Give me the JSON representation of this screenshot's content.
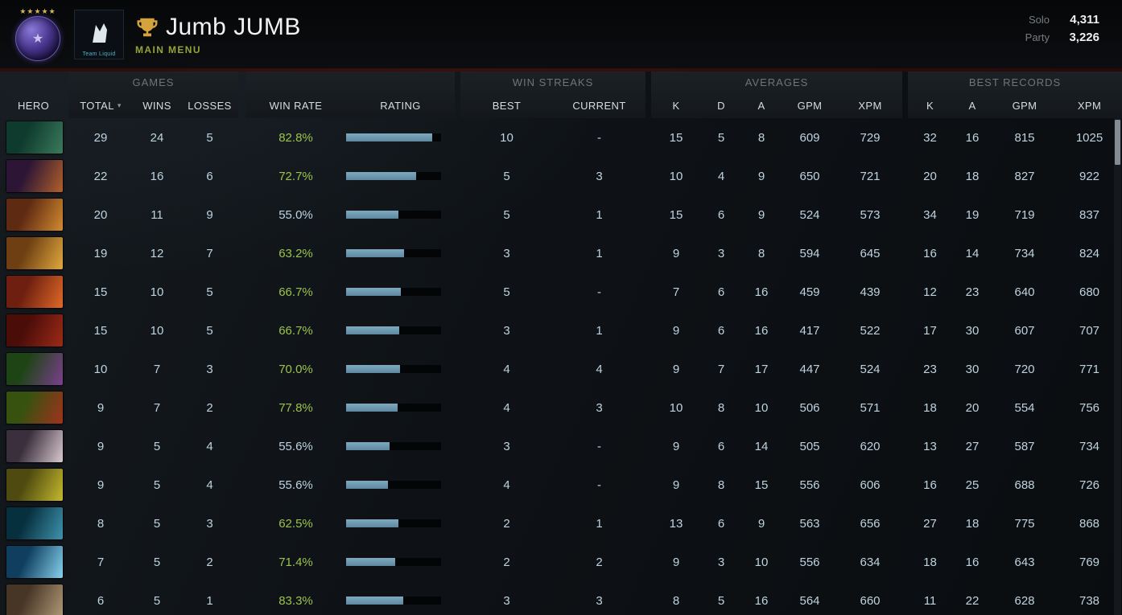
{
  "header": {
    "player_name": "Jumb JUMB",
    "menu_label": "MAIN MENU",
    "team_avatar_caption": "Team Liquid",
    "rating_panel": {
      "solo_label": "Solo",
      "solo_value": "4,311",
      "party_label": "Party",
      "party_value": "3,226"
    }
  },
  "table": {
    "group_headers": {
      "games": "GAMES",
      "win_streaks": "WIN STREAKS",
      "averages": "AVERAGES",
      "best_records": "BEST RECORDS"
    },
    "column_headers": {
      "hero": "HERO",
      "total": "TOTAL",
      "sort_icon": "▾",
      "wins": "WINS",
      "losses": "LOSSES",
      "win_rate": "WIN RATE",
      "rating": "RATING",
      "best": "BEST",
      "current": "CURRENT",
      "kills": "K",
      "deaths": "D",
      "assists": "A",
      "gpm": "GPM",
      "xpm": "XPM",
      "records_kills": "K",
      "records_assists": "A",
      "records_gpm": "GPM",
      "records_xpm": "XPM"
    },
    "rows": [
      {
        "total": 29,
        "wins": 24,
        "losses": 5,
        "win_rate": "82.8%",
        "rating_pct": 91,
        "streak_best": "10",
        "streak_current": "-",
        "avg": {
          "k": 15,
          "d": 5,
          "a": 8,
          "gpm": 609,
          "xpm": 729
        },
        "best": {
          "k": 32,
          "a": 16,
          "gpm": 815,
          "xpm": 1025
        },
        "portrait_colors": [
          "#0e3b2e",
          "#3b7a5c"
        ]
      },
      {
        "total": 22,
        "wins": 16,
        "losses": 6,
        "win_rate": "72.7%",
        "rating_pct": 74,
        "streak_best": "5",
        "streak_current": "3",
        "avg": {
          "k": 10,
          "d": 4,
          "a": 9,
          "gpm": 650,
          "xpm": 721
        },
        "best": {
          "k": 20,
          "a": 18,
          "gpm": 827,
          "xpm": 922
        },
        "portrait_colors": [
          "#2c1535",
          "#b2602a"
        ]
      },
      {
        "total": 20,
        "wins": 11,
        "losses": 9,
        "win_rate": "55.0%",
        "rating_pct": 55,
        "streak_best": "5",
        "streak_current": "1",
        "avg": {
          "k": 15,
          "d": 6,
          "a": 9,
          "gpm": 524,
          "xpm": 573
        },
        "best": {
          "k": 34,
          "a": 19,
          "gpm": 719,
          "xpm": 837
        },
        "portrait_colors": [
          "#5f2a12",
          "#d28b2f"
        ]
      },
      {
        "total": 19,
        "wins": 12,
        "losses": 7,
        "win_rate": "63.2%",
        "rating_pct": 61,
        "streak_best": "3",
        "streak_current": "1",
        "avg": {
          "k": 9,
          "d": 3,
          "a": 8,
          "gpm": 594,
          "xpm": 645
        },
        "best": {
          "k": 16,
          "a": 14,
          "gpm": 734,
          "xpm": 824
        },
        "portrait_colors": [
          "#6e3f12",
          "#e0a93e"
        ]
      },
      {
        "total": 15,
        "wins": 10,
        "losses": 5,
        "win_rate": "66.7%",
        "rating_pct": 58,
        "streak_best": "5",
        "streak_current": "-",
        "avg": {
          "k": 7,
          "d": 6,
          "a": 16,
          "gpm": 459,
          "xpm": 439
        },
        "best": {
          "k": 12,
          "a": 23,
          "gpm": 640,
          "xpm": 680
        },
        "portrait_colors": [
          "#6e1f10",
          "#e06a28"
        ]
      },
      {
        "total": 15,
        "wins": 10,
        "losses": 5,
        "win_rate": "66.7%",
        "rating_pct": 56,
        "streak_best": "3",
        "streak_current": "1",
        "avg": {
          "k": 9,
          "d": 6,
          "a": 16,
          "gpm": 417,
          "xpm": 522
        },
        "best": {
          "k": 17,
          "a": 30,
          "gpm": 607,
          "xpm": 707
        },
        "portrait_colors": [
          "#4a0d08",
          "#9e2a18"
        ]
      },
      {
        "total": 10,
        "wins": 7,
        "losses": 3,
        "win_rate": "70.0%",
        "rating_pct": 57,
        "streak_best": "4",
        "streak_current": "4",
        "avg": {
          "k": 9,
          "d": 7,
          "a": 17,
          "gpm": 447,
          "xpm": 524
        },
        "best": {
          "k": 23,
          "a": 30,
          "gpm": 720,
          "xpm": 771
        },
        "portrait_colors": [
          "#1e4416",
          "#7c3f8e"
        ]
      },
      {
        "total": 9,
        "wins": 7,
        "losses": 2,
        "win_rate": "77.8%",
        "rating_pct": 54,
        "streak_best": "4",
        "streak_current": "3",
        "avg": {
          "k": 10,
          "d": 8,
          "a": 10,
          "gpm": 506,
          "xpm": 571
        },
        "best": {
          "k": 18,
          "a": 20,
          "gpm": 554,
          "xpm": 756
        },
        "portrait_colors": [
          "#37520f",
          "#a1321c"
        ]
      },
      {
        "total": 9,
        "wins": 5,
        "losses": 4,
        "win_rate": "55.6%",
        "rating_pct": 46,
        "streak_best": "3",
        "streak_current": "-",
        "avg": {
          "k": 9,
          "d": 6,
          "a": 14,
          "gpm": 505,
          "xpm": 620
        },
        "best": {
          "k": 13,
          "a": 27,
          "gpm": 587,
          "xpm": 734
        },
        "portrait_colors": [
          "#3c2f3d",
          "#d9c9cf"
        ]
      },
      {
        "total": 9,
        "wins": 5,
        "losses": 4,
        "win_rate": "55.6%",
        "rating_pct": 44,
        "streak_best": "4",
        "streak_current": "-",
        "avg": {
          "k": 9,
          "d": 8,
          "a": 15,
          "gpm": 556,
          "xpm": 606
        },
        "best": {
          "k": 16,
          "a": 25,
          "gpm": 688,
          "xpm": 726
        },
        "portrait_colors": [
          "#4f4b10",
          "#c5b92e"
        ]
      },
      {
        "total": 8,
        "wins": 5,
        "losses": 3,
        "win_rate": "62.5%",
        "rating_pct": 55,
        "streak_best": "2",
        "streak_current": "1",
        "avg": {
          "k": 13,
          "d": 6,
          "a": 9,
          "gpm": 563,
          "xpm": 656
        },
        "best": {
          "k": 27,
          "a": 18,
          "gpm": 775,
          "xpm": 868
        },
        "portrait_colors": [
          "#07303f",
          "#3e93ad"
        ]
      },
      {
        "total": 7,
        "wins": 5,
        "losses": 2,
        "win_rate": "71.4%",
        "rating_pct": 52,
        "streak_best": "2",
        "streak_current": "2",
        "avg": {
          "k": 9,
          "d": 3,
          "a": 10,
          "gpm": 556,
          "xpm": 634
        },
        "best": {
          "k": 18,
          "a": 16,
          "gpm": 643,
          "xpm": 769
        },
        "portrait_colors": [
          "#0f3e5e",
          "#86d2ee"
        ]
      },
      {
        "total": 6,
        "wins": 5,
        "losses": 1,
        "win_rate": "83.3%",
        "rating_pct": 60,
        "streak_best": "3",
        "streak_current": "3",
        "avg": {
          "k": 8,
          "d": 5,
          "a": 16,
          "gpm": 564,
          "xpm": 660
        },
        "best": {
          "k": 11,
          "a": 22,
          "gpm": 628,
          "xpm": 738
        },
        "portrait_colors": [
          "#473626",
          "#b09877"
        ]
      }
    ]
  },
  "colors": {
    "win_rate_green": "#9cc24d",
    "rating_bar_fill": "#6f9cb2",
    "numbers_text": "#bfd3df",
    "menu_green": "#95a23c"
  }
}
